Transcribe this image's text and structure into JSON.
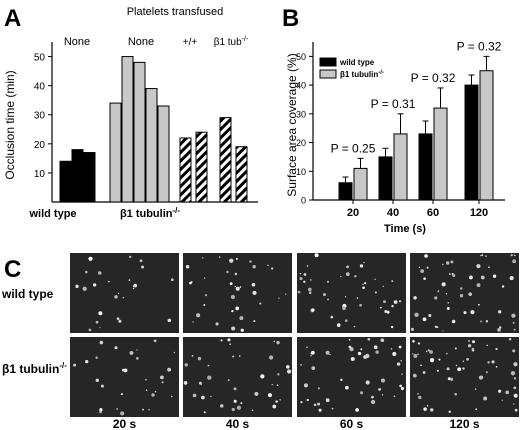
{
  "panel_labels": {
    "a": "A",
    "b": "B",
    "c": "C"
  },
  "panel_a": {
    "header": "Platelets transfused",
    "group_labels": [
      "None",
      "None",
      "+/+"
    ],
    "last_group_label": {
      "base": "β1 tub",
      "sup": "-/-"
    },
    "bottom_labels": {
      "left": "wild type",
      "right_base": "β1 tubulin",
      "right_sup": "-/-"
    }
  },
  "panel_b": {
    "legend": {
      "wt": "wild type",
      "ko_base": "β1 tubulin",
      "ko_sup": "-/-"
    },
    "p_labels": [
      "P = 0.25",
      "P = 0.31",
      "P = 0.32",
      "P = 0.32"
    ]
  },
  "panel_c": {
    "row_labels": {
      "top": "wild type",
      "bottom_base": "β1 tubulin",
      "bottom_sup": "-/-"
    },
    "col_labels": [
      "20 s",
      "40 s",
      "60 s",
      "120 s"
    ]
  },
  "colors": {
    "wild_type": "#000000",
    "knockout": "#c8c8c8",
    "hatch": "#000000",
    "micrograph_bg": "#262626"
  },
  "chart_data": [
    {
      "type": "bar",
      "title": "",
      "xlabel": "",
      "ylabel": "Occlusion time (min)",
      "ylim": [
        0,
        55
      ],
      "yticks": [
        10,
        20,
        30,
        40,
        50
      ],
      "groups": [
        {
          "label": "wild type · None",
          "fill": "black",
          "values": [
            14,
            18,
            17
          ]
        },
        {
          "label": "β1 tubulin-/- · None",
          "fill": "gray",
          "values": [
            34,
            50,
            48,
            39,
            33
          ]
        },
        {
          "label": "β1 tubulin-/- · +/+",
          "fill": "hatched",
          "values": [
            22,
            24
          ]
        },
        {
          "label": "β1 tubulin-/- · β1 tub-/-",
          "fill": "hatched",
          "values": [
            29,
            19
          ]
        }
      ]
    },
    {
      "type": "bar",
      "title": "",
      "xlabel": "Time (s)",
      "ylabel": "Surface area coverage (%)",
      "categories": [
        "20",
        "40",
        "60",
        "120"
      ],
      "ylim": [
        0,
        55
      ],
      "yticks": [
        0,
        10,
        20,
        30,
        40,
        50
      ],
      "legend_position": "top-left",
      "series": [
        {
          "name": "wild type",
          "values": [
            6,
            15,
            23,
            40
          ],
          "errors": [
            2,
            3,
            4.5,
            3.5
          ]
        },
        {
          "name": "β1 tubulin-/-",
          "values": [
            11,
            23,
            32,
            45
          ],
          "errors": [
            3.5,
            7,
            7,
            5
          ]
        }
      ]
    }
  ]
}
